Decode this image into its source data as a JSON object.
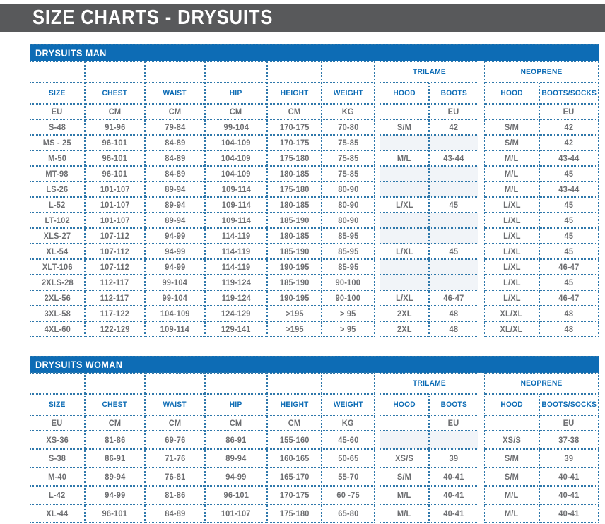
{
  "header": {
    "title": "SIZE CHARTS - DRYSUITS"
  },
  "colors": {
    "header_bar_gray": "#58595b",
    "accent_blue": "#0d6cb5",
    "border_blue": "#2f78ab",
    "table_text_gray": "#6d6e71",
    "empty_cell_bg": "#f1f4f8"
  },
  "tables": [
    {
      "title": "DRYSUITS MAN",
      "group_headers": [
        "TRILAME",
        "NEOPRENE"
      ],
      "columns": [
        "SIZE",
        "CHEST",
        "WAIST",
        "HIP",
        "HEIGHT",
        "WEIGHT",
        "HOOD",
        "BOOTS",
        "HOOD",
        "BOOTS/SOCKS"
      ],
      "units": [
        "EU",
        "CM",
        "CM",
        "CM",
        "CM",
        "KG",
        "",
        "EU",
        "",
        "EU"
      ],
      "rows": [
        [
          "S-48",
          "91-96",
          "79-84",
          "99-104",
          "170-175",
          "70-80",
          "S/M",
          "42",
          "S/M",
          "42"
        ],
        [
          "MS - 25",
          "96-101",
          "84-89",
          "104-109",
          "170-175",
          "75-85",
          "",
          "",
          "S/M",
          "42"
        ],
        [
          "M-50",
          "96-101",
          "84-89",
          "104-109",
          "175-180",
          "75-85",
          "M/L",
          "43-44",
          "M/L",
          "43-44"
        ],
        [
          "MT-98",
          "96-101",
          "84-89",
          "104-109",
          "180-185",
          "75-85",
          "",
          "",
          "M/L",
          "45"
        ],
        [
          "LS-26",
          "101-107",
          "89-94",
          "109-114",
          "175-180",
          "80-90",
          "",
          "",
          "M/L",
          "43-44"
        ],
        [
          "L-52",
          "101-107",
          "89-94",
          "109-114",
          "180-185",
          "80-90",
          "L/XL",
          "45",
          "L/XL",
          "45"
        ],
        [
          "LT-102",
          "101-107",
          "89-94",
          "109-114",
          "185-190",
          "80-90",
          "",
          "",
          "L/XL",
          "45"
        ],
        [
          "XLS-27",
          "107-112",
          "94-99",
          "114-119",
          "180-185",
          "85-95",
          "",
          "",
          "L/XL",
          "45"
        ],
        [
          "XL-54",
          "107-112",
          "94-99",
          "114-119",
          "185-190",
          "85-95",
          "L/XL",
          "45",
          "L/XL",
          "45"
        ],
        [
          "XLT-106",
          "107-112",
          "94-99",
          "114-119",
          "190-195",
          "85-95",
          "",
          "",
          "L/XL",
          "46-47"
        ],
        [
          "2XLS-28",
          "112-117",
          "99-104",
          "119-124",
          "185-190",
          "90-100",
          "",
          "",
          "L/XL",
          "45"
        ],
        [
          "2XL-56",
          "112-117",
          "99-104",
          "119-124",
          "190-195",
          "90-100",
          "L/XL",
          "46-47",
          "L/XL",
          "46-47"
        ],
        [
          "3XL-58",
          "117-122",
          "104-109",
          "124-129",
          ">195",
          "> 95",
          "2XL",
          "48",
          "XL/XL",
          "48"
        ],
        [
          "4XL-60",
          "122-129",
          "109-114",
          "129-141",
          ">195",
          "> 95",
          "2XL",
          "48",
          "XL/XL",
          "48"
        ]
      ]
    },
    {
      "title": "DRYSUITS WOMAN",
      "group_headers": [
        "TRILAME",
        "NEOPRENE"
      ],
      "columns": [
        "SIZE",
        "CHEST",
        "WAIST",
        "HIP",
        "HEIGHT",
        "WEIGHT",
        "HOOD",
        "BOOTS",
        "HOOD",
        "BOOTS/SOCKS"
      ],
      "units": [
        "EU",
        "CM",
        "CM",
        "CM",
        "CM",
        "KG",
        "",
        "EU",
        "",
        "EU"
      ],
      "rows": [
        [
          "XS-36",
          "81-86",
          "69-76",
          "86-91",
          "155-160",
          "45-60",
          "",
          "",
          "XS/S",
          "37-38"
        ],
        [
          "S-38",
          "86-91",
          "71-76",
          "89-94",
          "160-165",
          "50-65",
          "XS/S",
          "39",
          "S/M",
          "39"
        ],
        [
          "M-40",
          "89-94",
          "76-81",
          "94-99",
          "165-170",
          "55-70",
          "S/M",
          "40-41",
          "S/M",
          "40-41"
        ],
        [
          "L-42",
          "94-99",
          "81-86",
          "96-101",
          "170-175",
          "60 -75",
          "M/L",
          "40-41",
          "M/L",
          "40-41"
        ],
        [
          "XL-44",
          "96-101",
          "84-89",
          "101-107",
          "175-180",
          "65-80",
          "M/L",
          "40-41",
          "M/L",
          "40-41"
        ]
      ]
    }
  ]
}
